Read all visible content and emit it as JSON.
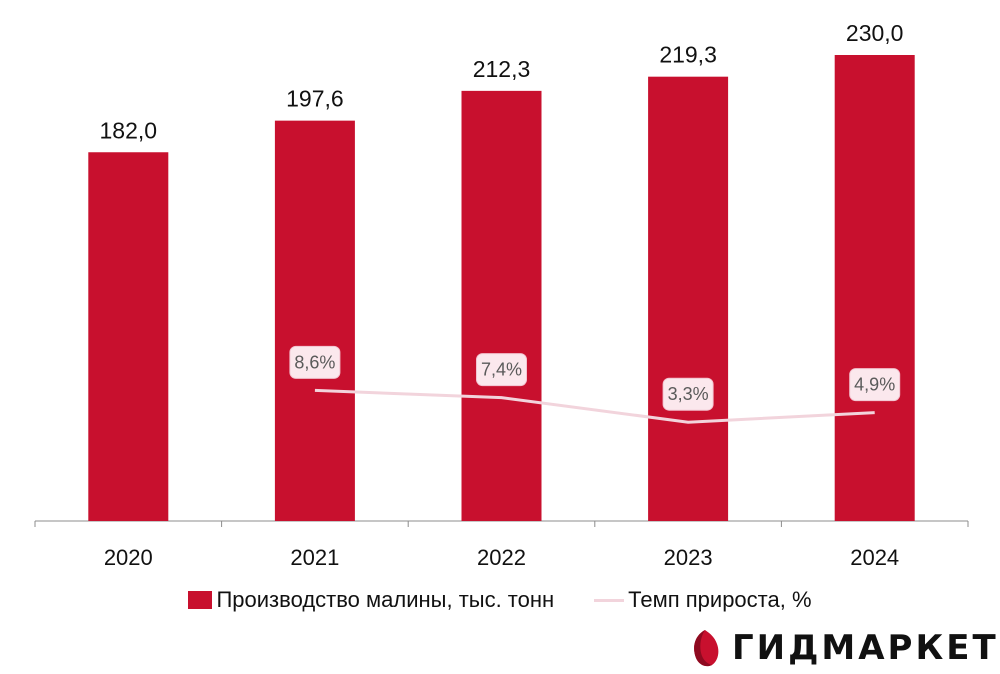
{
  "colors": {
    "bar": "#c8102e",
    "line": "#f2d4dc",
    "label_box": "#fbe8ed",
    "label_box_border": "#f2c4d0"
  },
  "chart_data": {
    "type": "bar",
    "categories": [
      "2020",
      "2021",
      "2022",
      "2023",
      "2024"
    ],
    "series": [
      {
        "name": "Производство малины, тыс. тонн",
        "type": "bar",
        "values": [
          182.0,
          197.6,
          212.3,
          219.3,
          230.0
        ],
        "labels": [
          "182,0",
          "197,6",
          "212,3",
          "219,3",
          "230,0"
        ]
      },
      {
        "name": "Темп прироста, %",
        "type": "line",
        "values": [
          null,
          8.6,
          7.4,
          3.3,
          4.9
        ],
        "labels": [
          "",
          "8,6%",
          "7,4%",
          "3,3%",
          "4,9%"
        ]
      }
    ],
    "ylim": [
      0,
      230
    ],
    "title": "",
    "xlabel": "",
    "ylabel": "",
    "grid": false,
    "legend_position": "bottom"
  },
  "legend": {
    "bar_label": "Производство малины, тыс. тонн",
    "line_label": "Темп прироста, %"
  },
  "logo": {
    "text": "ГИДМАРКЕТ",
    "icon": "gidmarket-logo-icon"
  }
}
